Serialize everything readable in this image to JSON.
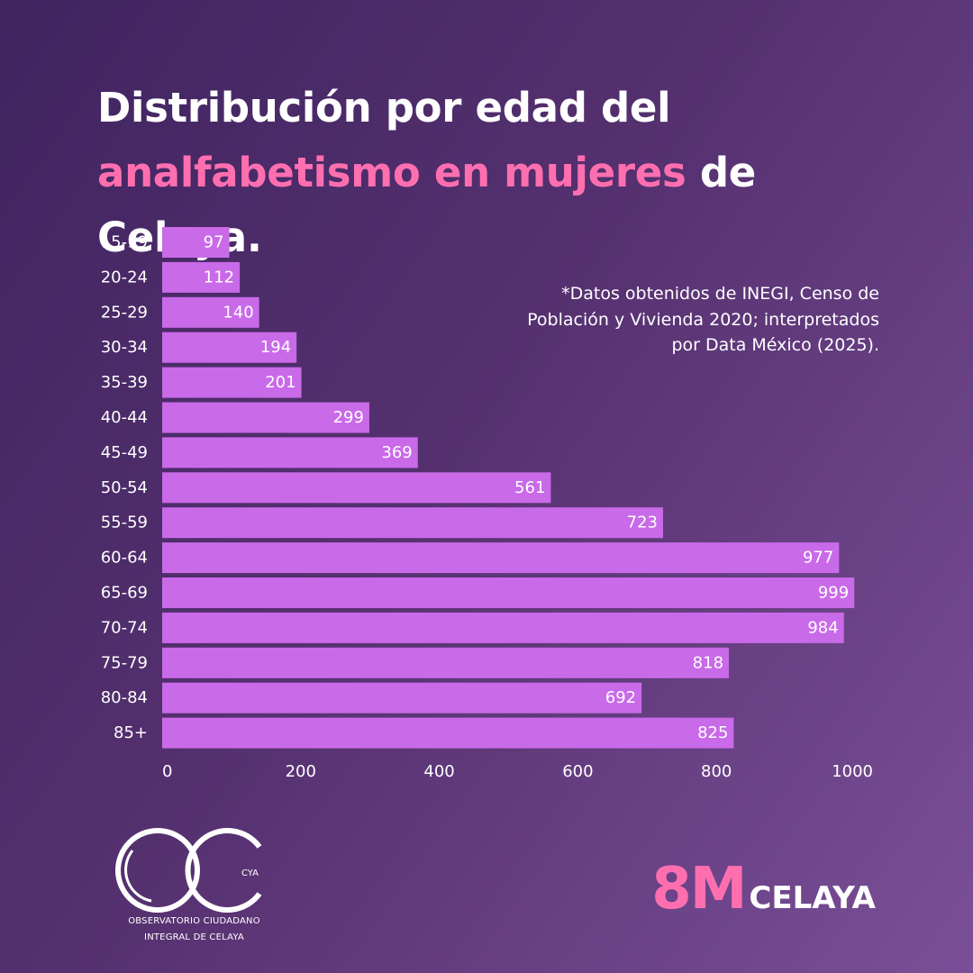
{
  "title": {
    "line1": "Distribución por edad del",
    "highlight": "analfabetismo en mujeres",
    "rest": " de Celaya."
  },
  "note": "*Datos obtenidos de INEGI, Censo de Población y Vivienda 2020; interpretados por Data México (2025).",
  "logo": {
    "mark_label": "CYA",
    "line1": "OBSERVATORIO CIUDADANO",
    "line2": "INTEGRAL DE CELAYA"
  },
  "badge": {
    "big": "8M",
    "small": "CELAYA"
  },
  "colors": {
    "bar": "#c96ae8",
    "accent": "#ff6fb0",
    "text": "#ffffff",
    "background_start": "#3f2460",
    "background_end": "#7a4f97"
  },
  "chart_data": {
    "type": "bar",
    "orientation": "horizontal",
    "categories": [
      "15-19",
      "20-24",
      "25-29",
      "30-34",
      "35-39",
      "40-44",
      "45-49",
      "50-54",
      "55-59",
      "60-64",
      "65-69",
      "70-74",
      "75-79",
      "80-84",
      "85+"
    ],
    "values": [
      97,
      112,
      140,
      194,
      201,
      299,
      369,
      561,
      723,
      977,
      999,
      984,
      818,
      692,
      825
    ],
    "data_labels": [
      "97",
      "112",
      "140",
      "194",
      "201",
      "299",
      "369",
      "561",
      "723",
      "977",
      "999",
      "984",
      "818",
      "692",
      "825"
    ],
    "xlim": [
      0,
      1000
    ],
    "xticks": [
      0,
      200,
      400,
      600,
      800,
      1000
    ],
    "xlabel": "",
    "ylabel": "",
    "grid": false,
    "legend": "none"
  }
}
